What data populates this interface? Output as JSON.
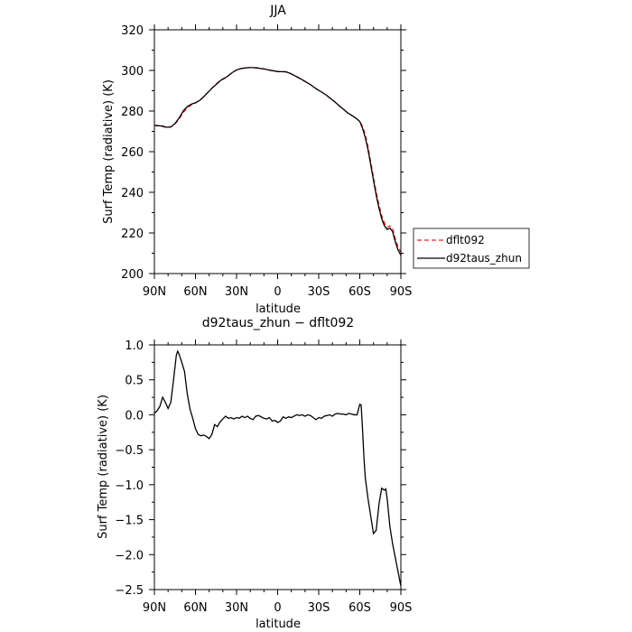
{
  "chart_data": [
    {
      "type": "line",
      "title": "JJA",
      "xlabel": "latitude",
      "ylabel": "Surf Temp (radiative) (K)",
      "xlim": [
        90,
        -90
      ],
      "ylim": [
        200,
        320
      ],
      "x_ticks": [
        90,
        60,
        30,
        0,
        -30,
        -60,
        -90
      ],
      "x_tick_labels": [
        "90N",
        "60N",
        "30N",
        "0",
        "30S",
        "60S",
        "90S"
      ],
      "y_ticks": [
        200,
        220,
        240,
        260,
        280,
        300,
        320
      ],
      "y_tick_labels": [
        "200",
        "220",
        "240",
        "260",
        "280",
        "300",
        "320"
      ],
      "grid": false,
      "legend_position": "right",
      "series": [
        {
          "name": "dflt092",
          "color": "#e8262b",
          "dash": "dashed",
          "points": [
            [
              90,
              272.9
            ],
            [
              87,
              272.7
            ],
            [
              84,
              272.4
            ],
            [
              81,
              271.9
            ],
            [
              78,
              272.1
            ],
            [
              75,
              273.6
            ],
            [
              72,
              276.0
            ],
            [
              69,
              279.2
            ],
            [
              66,
              281.5
            ],
            [
              63,
              283.0
            ],
            [
              60,
              284.0
            ],
            [
              57,
              285.2
            ],
            [
              54,
              287.1
            ],
            [
              51,
              289.2
            ],
            [
              48,
              291.3
            ],
            [
              45,
              293.2
            ],
            [
              42,
              295.2
            ],
            [
              39,
              296.2
            ],
            [
              36,
              297.5
            ],
            [
              33,
              299.0
            ],
            [
              30,
              300.2
            ],
            [
              27,
              300.9
            ],
            [
              24,
              301.2
            ],
            [
              21,
              301.4
            ],
            [
              18,
              301.4
            ],
            [
              15,
              301.3
            ],
            [
              12,
              301.0
            ],
            [
              9,
              300.6
            ],
            [
              6,
              300.2
            ],
            [
              3,
              299.8
            ],
            [
              0,
              299.5
            ],
            [
              -3,
              299.5
            ],
            [
              -6,
              299.3
            ],
            [
              -9,
              298.6
            ],
            [
              -12,
              297.6
            ],
            [
              -15,
              296.5
            ],
            [
              -18,
              295.4
            ],
            [
              -21,
              294.2
            ],
            [
              -24,
              293.0
            ],
            [
              -27,
              291.5
            ],
            [
              -30,
              290.2
            ],
            [
              -33,
              289.0
            ],
            [
              -36,
              287.6
            ],
            [
              -39,
              286.0
            ],
            [
              -42,
              284.4
            ],
            [
              -45,
              282.6
            ],
            [
              -48,
              280.9
            ],
            [
              -51,
              279.2
            ],
            [
              -54,
              277.9
            ],
            [
              -57,
              276.6
            ],
            [
              -60,
              274.8
            ],
            [
              -62,
              272.5
            ],
            [
              -64,
              268.5
            ],
            [
              -66,
              262.5
            ],
            [
              -68,
              255.0
            ],
            [
              -70,
              247.5
            ],
            [
              -72,
              240.0
            ],
            [
              -74,
              234.0
            ],
            [
              -76,
              228.5
            ],
            [
              -78,
              225.0
            ],
            [
              -80,
              222.8
            ],
            [
              -82,
              223.5
            ],
            [
              -84,
              222.3
            ],
            [
              -86,
              217.0
            ],
            [
              -88,
              213.0
            ],
            [
              -90,
              210.5
            ]
          ]
        },
        {
          "name": "d92taus_zhun",
          "color": "#000000",
          "dash": "solid",
          "points": [
            [
              90,
              273.0
            ],
            [
              87,
              272.8
            ],
            [
              84,
              272.6
            ],
            [
              81,
              272.0
            ],
            [
              78,
              272.2
            ],
            [
              75,
              273.8
            ],
            [
              72,
              276.5
            ],
            [
              69,
              280.0
            ],
            [
              66,
              282.2
            ],
            [
              63,
              283.4
            ],
            [
              60,
              284.1
            ],
            [
              57,
              285.2
            ],
            [
              54,
              287.0
            ],
            [
              51,
              289.1
            ],
            [
              48,
              291.2
            ],
            [
              45,
              293.0
            ],
            [
              42,
              294.9
            ],
            [
              39,
              296.0
            ],
            [
              36,
              297.4
            ],
            [
              33,
              299.0
            ],
            [
              30,
              300.2
            ],
            [
              27,
              300.9
            ],
            [
              24,
              301.2
            ],
            [
              21,
              301.4
            ],
            [
              18,
              301.4
            ],
            [
              15,
              301.2
            ],
            [
              12,
              300.9
            ],
            [
              9,
              300.6
            ],
            [
              6,
              300.1
            ],
            [
              3,
              299.8
            ],
            [
              0,
              299.4
            ],
            [
              -3,
              299.4
            ],
            [
              -6,
              299.3
            ],
            [
              -9,
              298.6
            ],
            [
              -12,
              297.6
            ],
            [
              -15,
              296.5
            ],
            [
              -18,
              295.4
            ],
            [
              -21,
              294.2
            ],
            [
              -24,
              293.0
            ],
            [
              -27,
              291.5
            ],
            [
              -30,
              290.2
            ],
            [
              -33,
              289.0
            ],
            [
              -36,
              287.6
            ],
            [
              -39,
              286.0
            ],
            [
              -42,
              284.4
            ],
            [
              -45,
              282.6
            ],
            [
              -48,
              280.9
            ],
            [
              -51,
              279.2
            ],
            [
              -54,
              277.9
            ],
            [
              -57,
              276.6
            ],
            [
              -60,
              274.9
            ],
            [
              -62,
              271.5
            ],
            [
              -64,
              267.0
            ],
            [
              -66,
              261.0
            ],
            [
              -68,
              253.5
            ],
            [
              -70,
              246.0
            ],
            [
              -72,
              238.5
            ],
            [
              -74,
              232.3
            ],
            [
              -76,
              227.0
            ],
            [
              -78,
              223.5
            ],
            [
              -80,
              221.7
            ],
            [
              -82,
              222.4
            ],
            [
              -84,
              220.6
            ],
            [
              -86,
              215.5
            ],
            [
              -88,
              211.5
            ],
            [
              -90,
              209.0
            ]
          ]
        }
      ]
    },
    {
      "type": "line",
      "title": "d92taus_zhun − dflt092",
      "xlabel": "latitude",
      "ylabel": "Surf Temp (radiative) (K)",
      "xlim": [
        90,
        -90
      ],
      "ylim": [
        -2.5,
        1.0
      ],
      "x_ticks": [
        90,
        60,
        30,
        0,
        -30,
        -60,
        -90
      ],
      "x_tick_labels": [
        "90N",
        "60N",
        "30N",
        "0",
        "30S",
        "60S",
        "90S"
      ],
      "y_ticks": [
        1.0,
        0.5,
        0.0,
        -0.5,
        -1.0,
        -1.5,
        -2.0,
        -2.5
      ],
      "y_tick_labels": [
        "1.0",
        "0.5",
        "0.0",
        "−0.5",
        "−1.0",
        "−1.5",
        "−2.0",
        "−2.5"
      ],
      "grid": false,
      "series": [
        {
          "color": "#000000",
          "dash": "solid",
          "points": [
            [
              90,
              0.02
            ],
            [
              88,
              0.06
            ],
            [
              86,
              0.12
            ],
            [
              84,
              0.25
            ],
            [
              82,
              0.18
            ],
            [
              80,
              0.09
            ],
            [
              78,
              0.18
            ],
            [
              76,
              0.5
            ],
            [
              74,
              0.85
            ],
            [
              73,
              0.91
            ],
            [
              72,
              0.87
            ],
            [
              70,
              0.75
            ],
            [
              68,
              0.62
            ],
            [
              66,
              0.3
            ],
            [
              64,
              0.08
            ],
            [
              62,
              -0.05
            ],
            [
              60,
              -0.2
            ],
            [
              58,
              -0.28
            ],
            [
              56,
              -0.3
            ],
            [
              54,
              -0.29
            ],
            [
              52,
              -0.31
            ],
            [
              50,
              -0.34
            ],
            [
              48,
              -0.28
            ],
            [
              46,
              -0.14
            ],
            [
              44,
              -0.17
            ],
            [
              42,
              -0.1
            ],
            [
              40,
              -0.06
            ],
            [
              38,
              -0.02
            ],
            [
              36,
              -0.05
            ],
            [
              34,
              -0.04
            ],
            [
              32,
              -0.06
            ],
            [
              30,
              -0.04
            ],
            [
              28,
              -0.05
            ],
            [
              26,
              -0.02
            ],
            [
              24,
              -0.04
            ],
            [
              22,
              -0.02
            ],
            [
              20,
              -0.05
            ],
            [
              18,
              -0.07
            ],
            [
              16,
              -0.02
            ],
            [
              14,
              -0.01
            ],
            [
              12,
              -0.03
            ],
            [
              10,
              -0.05
            ],
            [
              8,
              -0.06
            ],
            [
              6,
              -0.04
            ],
            [
              4,
              -0.09
            ],
            [
              2,
              -0.08
            ],
            [
              0,
              -0.11
            ],
            [
              -2,
              -0.09
            ],
            [
              -4,
              -0.03
            ],
            [
              -6,
              -0.05
            ],
            [
              -8,
              -0.03
            ],
            [
              -10,
              -0.04
            ],
            [
              -12,
              -0.02
            ],
            [
              -14,
              0.0
            ],
            [
              -16,
              -0.01
            ],
            [
              -18,
              0.0
            ],
            [
              -20,
              -0.02
            ],
            [
              -22,
              0.0
            ],
            [
              -24,
              -0.01
            ],
            [
              -26,
              -0.04
            ],
            [
              -28,
              -0.07
            ],
            [
              -30,
              -0.04
            ],
            [
              -32,
              -0.05
            ],
            [
              -34,
              -0.02
            ],
            [
              -36,
              -0.01
            ],
            [
              -38,
              0.0
            ],
            [
              -40,
              -0.02
            ],
            [
              -42,
              0.01
            ],
            [
              -44,
              0.02
            ],
            [
              -46,
              0.01
            ],
            [
              -48,
              0.01
            ],
            [
              -50,
              0.0
            ],
            [
              -52,
              0.02
            ],
            [
              -54,
              0.01
            ],
            [
              -56,
              0.0
            ],
            [
              -58,
              0.0
            ],
            [
              -60,
              0.15
            ],
            [
              -61,
              0.14
            ],
            [
              -62,
              -0.2
            ],
            [
              -63,
              -0.6
            ],
            [
              -64,
              -0.9
            ],
            [
              -66,
              -1.2
            ],
            [
              -68,
              -1.45
            ],
            [
              -70,
              -1.7
            ],
            [
              -72,
              -1.65
            ],
            [
              -74,
              -1.28
            ],
            [
              -76,
              -1.05
            ],
            [
              -78,
              -1.08
            ],
            [
              -79,
              -1.06
            ],
            [
              -80,
              -1.2
            ],
            [
              -82,
              -1.6
            ],
            [
              -84,
              -1.85
            ],
            [
              -86,
              -2.05
            ],
            [
              -88,
              -2.25
            ],
            [
              -90,
              -2.45
            ]
          ]
        }
      ]
    }
  ]
}
